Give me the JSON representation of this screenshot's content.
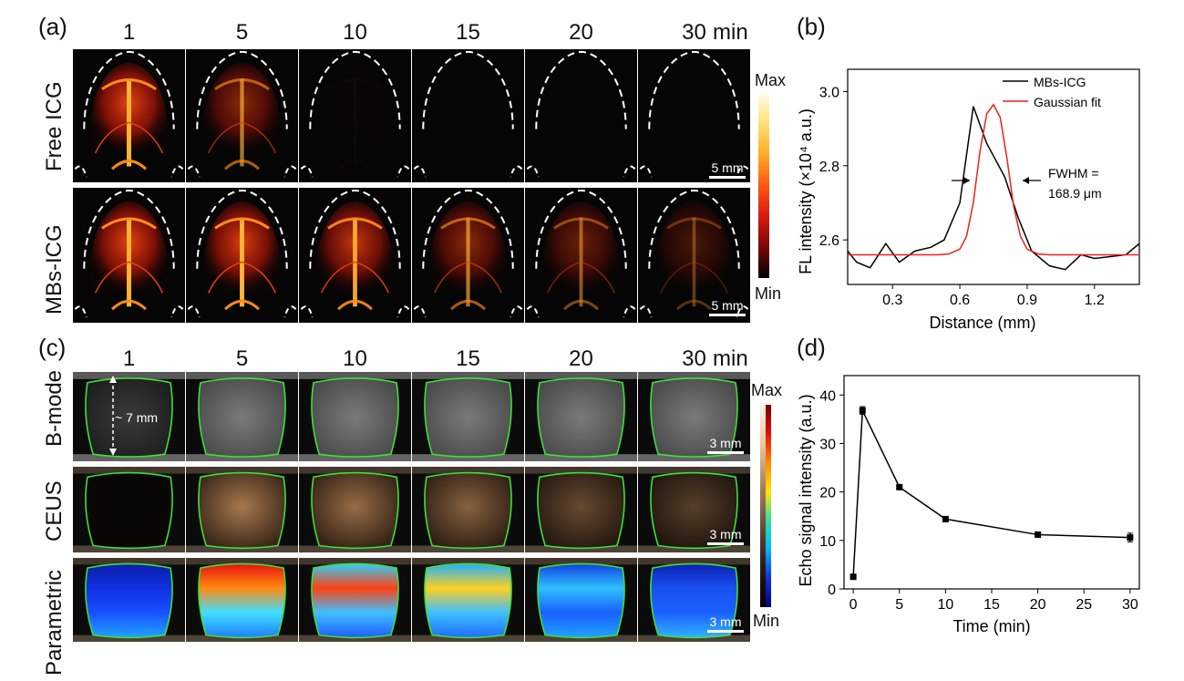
{
  "figure": {
    "panel_labels": [
      "(a)",
      "(b)",
      "(c)",
      "(d)"
    ],
    "panel_a": {
      "time_labels": [
        "1",
        "5",
        "10",
        "15",
        "20",
        "30"
      ],
      "time_unit": "min",
      "rows": [
        "Free ICG",
        "MBs-ICG"
      ],
      "scale_bar": "5 mm",
      "colorbar_max": "Max",
      "colorbar_min": "Min",
      "free_icg_signal": [
        1.0,
        0.6,
        0.02,
        0.0,
        0.0,
        0.0
      ],
      "mbs_icg_signal": [
        1.0,
        0.95,
        0.85,
        0.6,
        0.45,
        0.3
      ]
    },
    "panel_c": {
      "time_labels": [
        "1",
        "5",
        "10",
        "15",
        "20",
        "30"
      ],
      "time_unit": "min",
      "rows": [
        "B-mode",
        "CEUS",
        "Parametric"
      ],
      "annotation": "~ 7 mm",
      "scale_bar": "3 mm",
      "colorbar_max": "Max",
      "colorbar_min": "Min"
    }
  },
  "chart_data": [
    {
      "id": "b",
      "type": "line",
      "title": "",
      "xlabel": "Distance (mm)",
      "ylabel": "FL intensity (×10⁴ a.u.)",
      "xlim": [
        0.1,
        1.4
      ],
      "ylim": [
        2.48,
        3.06
      ],
      "xticks": [
        "0.3",
        "0.6",
        "0.9",
        "1.2"
      ],
      "yticks": [
        "2.6",
        "2.8",
        "3.0"
      ],
      "legend": [
        "MBs-ICG",
        "Gaussian fit"
      ],
      "annotation": [
        "FWHM =",
        "168.9 μm"
      ],
      "series": [
        {
          "name": "MBs-ICG",
          "color": "#000000",
          "x": [
            0.1,
            0.14,
            0.2,
            0.27,
            0.33,
            0.4,
            0.47,
            0.53,
            0.6,
            0.66,
            0.72,
            0.8,
            0.86,
            0.92,
            1.0,
            1.07,
            1.14,
            1.2,
            1.27,
            1.34,
            1.4
          ],
          "y": [
            2.57,
            2.54,
            2.525,
            2.59,
            2.54,
            2.57,
            2.58,
            2.6,
            2.7,
            2.96,
            2.86,
            2.77,
            2.66,
            2.57,
            2.53,
            2.52,
            2.56,
            2.55,
            2.555,
            2.56,
            2.59
          ]
        },
        {
          "name": "Gaussian fit",
          "color": "#e8231c",
          "x": [
            0.1,
            0.5,
            0.55,
            0.6,
            0.63,
            0.66,
            0.69,
            0.72,
            0.75,
            0.78,
            0.81,
            0.84,
            0.87,
            0.9,
            0.95,
            1.0,
            1.4
          ],
          "y": [
            2.56,
            2.56,
            2.562,
            2.575,
            2.61,
            2.7,
            2.84,
            2.94,
            2.965,
            2.93,
            2.82,
            2.69,
            2.61,
            2.575,
            2.562,
            2.56,
            2.56
          ]
        }
      ]
    },
    {
      "id": "d",
      "type": "line",
      "title": "",
      "xlabel": "Time (min)",
      "ylabel": "Echo signal intensity (a.u.)",
      "xlim": [
        -1,
        31
      ],
      "ylim": [
        0,
        44
      ],
      "xticks": [
        "0",
        "5",
        "10",
        "15",
        "20",
        "25",
        "30"
      ],
      "yticks": [
        "0",
        "10",
        "20",
        "30",
        "40"
      ],
      "series": [
        {
          "name": "Echo signal",
          "color": "#000000",
          "x": [
            0,
            1,
            5,
            10,
            20,
            30
          ],
          "y": [
            2.5,
            36.8,
            21.0,
            14.4,
            11.2,
            10.6
          ],
          "err": [
            0.3,
            0.8,
            0.5,
            0.4,
            0.4,
            0.9
          ]
        }
      ]
    }
  ]
}
